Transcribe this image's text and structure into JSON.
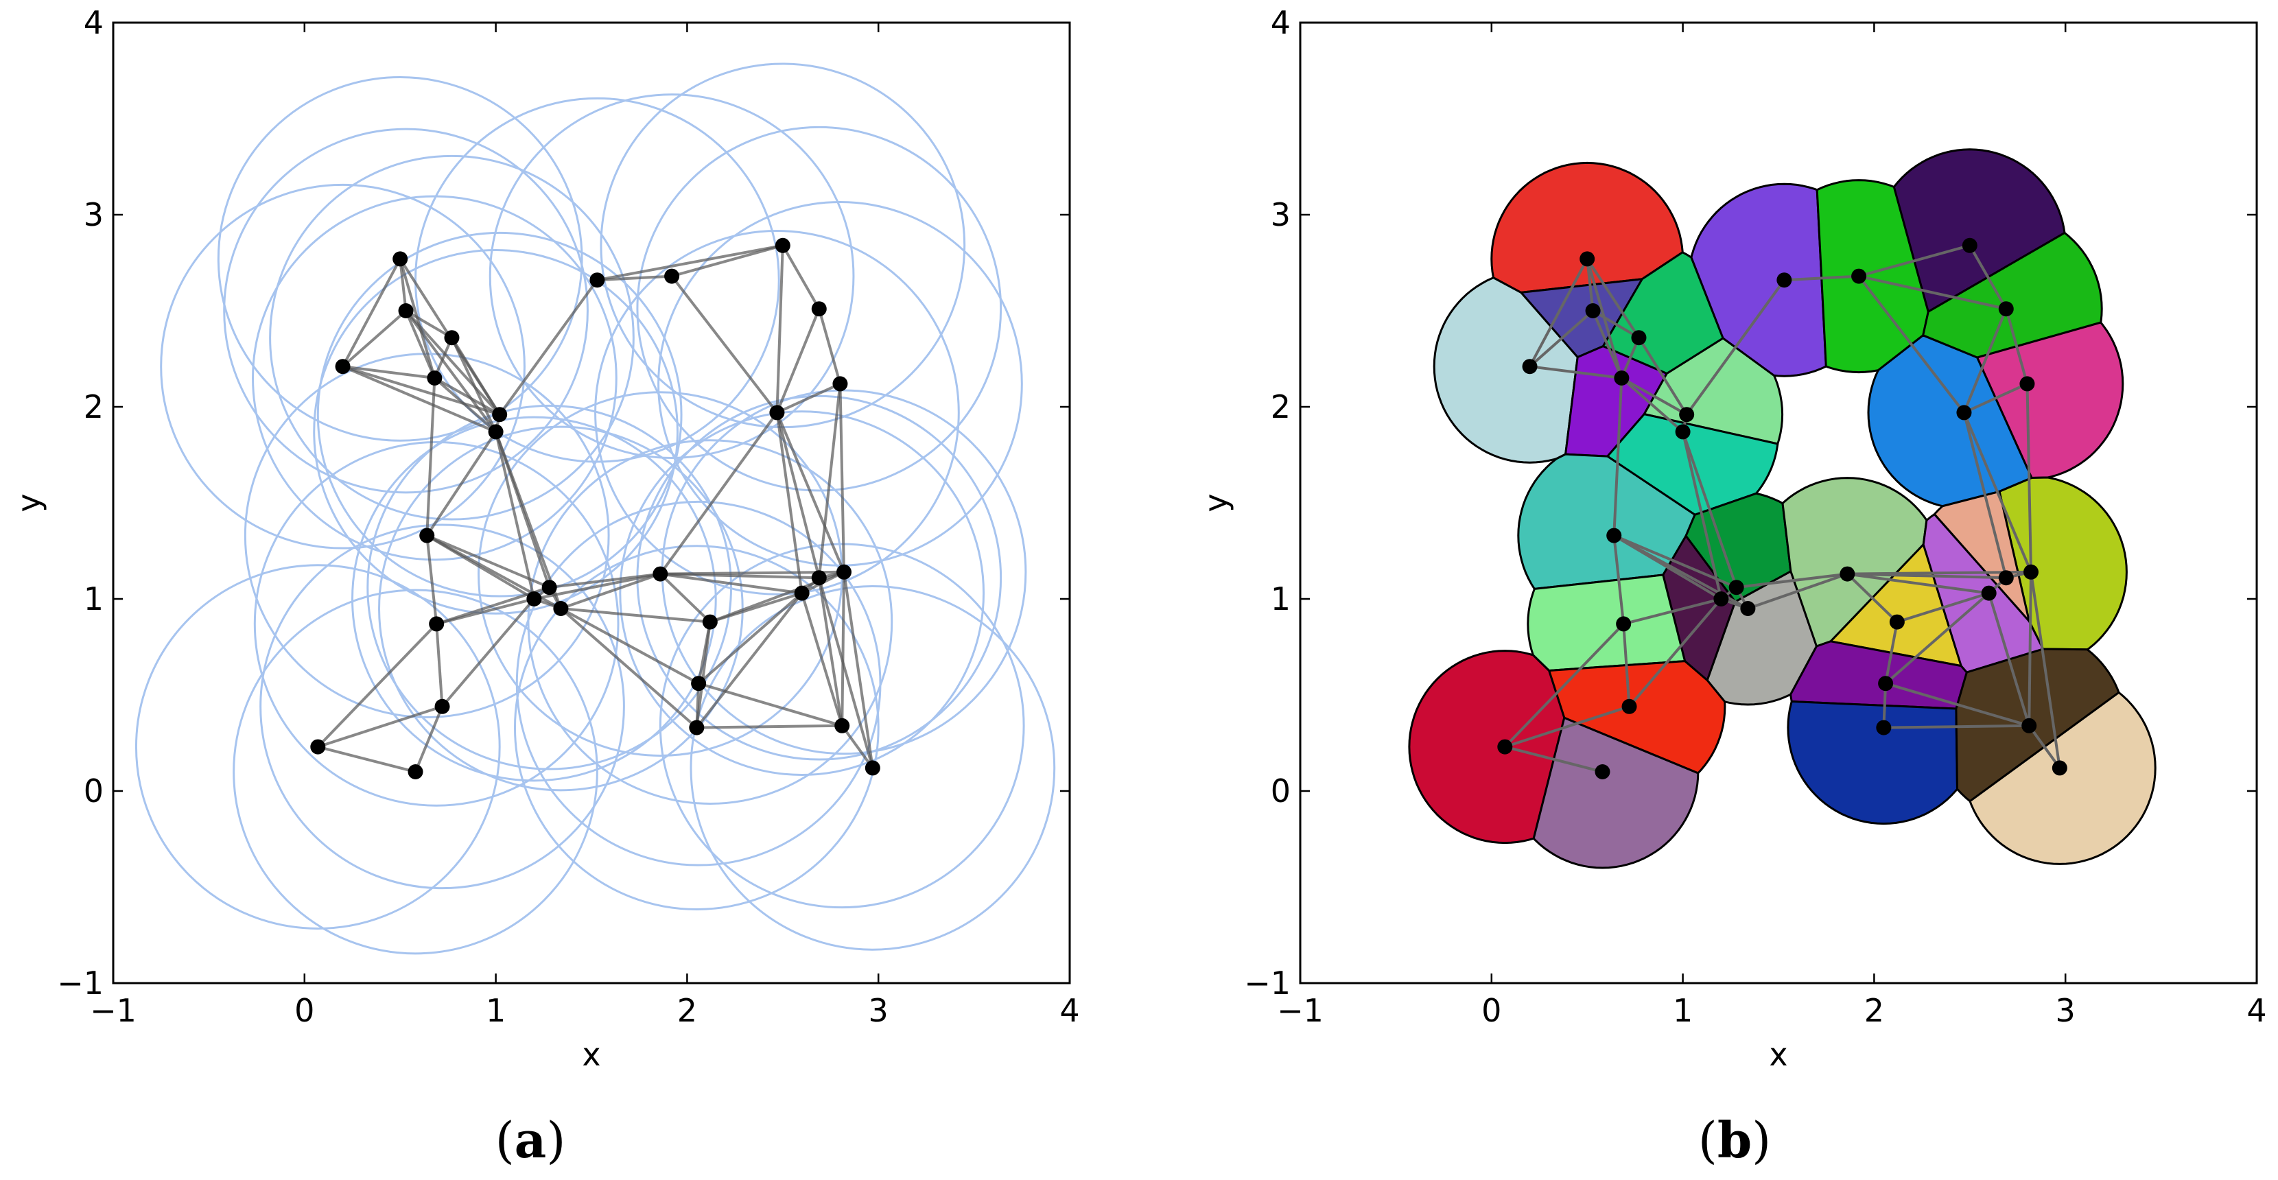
{
  "chart_data": [
    {
      "panel": "a",
      "type": "scatter",
      "caption_letter": "a",
      "title": "",
      "xlabel": "x",
      "ylabel": "y",
      "xlim": [
        -1,
        4
      ],
      "ylim": [
        -1,
        4
      ],
      "xticks": [
        -1,
        0,
        1,
        2,
        3,
        4
      ],
      "yticks": [
        -1,
        0,
        1,
        2,
        3,
        4
      ],
      "xtick_labels": [
        "−1",
        "0",
        "1",
        "2",
        "3",
        "4"
      ],
      "ytick_labels": [
        "−1",
        "0",
        "1",
        "2",
        "3",
        "4"
      ],
      "grid": false,
      "circle_radius": 0.95,
      "circle_color": "#a7c4ef",
      "edge_color": "#555555",
      "point_color": "#000000",
      "points": [
        [
          0.5,
          2.77
        ],
        [
          0.53,
          2.5
        ],
        [
          0.77,
          2.36
        ],
        [
          0.2,
          2.21
        ],
        [
          0.68,
          2.15
        ],
        [
          1.02,
          1.96
        ],
        [
          1.0,
          1.87
        ],
        [
          1.53,
          2.66
        ],
        [
          1.92,
          2.68
        ],
        [
          2.5,
          2.84
        ],
        [
          2.69,
          2.51
        ],
        [
          2.8,
          2.12
        ],
        [
          2.47,
          1.97
        ],
        [
          0.64,
          1.33
        ],
        [
          1.28,
          1.06
        ],
        [
          1.2,
          1.0
        ],
        [
          1.34,
          0.95
        ],
        [
          1.86,
          1.13
        ],
        [
          2.12,
          0.88
        ],
        [
          2.06,
          0.56
        ],
        [
          2.05,
          0.33
        ],
        [
          2.82,
          1.14
        ],
        [
          2.69,
          1.11
        ],
        [
          2.6,
          1.03
        ],
        [
          2.81,
          0.34
        ],
        [
          2.97,
          0.12
        ],
        [
          0.69,
          0.87
        ],
        [
          0.72,
          0.44
        ],
        [
          0.07,
          0.23
        ],
        [
          0.58,
          0.1
        ]
      ],
      "edges": [
        [
          0,
          1
        ],
        [
          0,
          3
        ],
        [
          0,
          4
        ],
        [
          0,
          5
        ],
        [
          1,
          2
        ],
        [
          1,
          3
        ],
        [
          1,
          4
        ],
        [
          1,
          5
        ],
        [
          1,
          6
        ],
        [
          2,
          4
        ],
        [
          2,
          5
        ],
        [
          2,
          6
        ],
        [
          3,
          4
        ],
        [
          3,
          5
        ],
        [
          3,
          6
        ],
        [
          4,
          5
        ],
        [
          4,
          6
        ],
        [
          4,
          13
        ],
        [
          5,
          6
        ],
        [
          6,
          13
        ],
        [
          6,
          14
        ],
        [
          6,
          15
        ],
        [
          6,
          16
        ],
        [
          5,
          7
        ],
        [
          7,
          8
        ],
        [
          7,
          9
        ],
        [
          8,
          9
        ],
        [
          8,
          12
        ],
        [
          9,
          10
        ],
        [
          9,
          12
        ],
        [
          10,
          11
        ],
        [
          10,
          12
        ],
        [
          11,
          12
        ],
        [
          11,
          21
        ],
        [
          12,
          21
        ],
        [
          12,
          22
        ],
        [
          11,
          22
        ],
        [
          12,
          17
        ],
        [
          12,
          23
        ],
        [
          13,
          14
        ],
        [
          13,
          15
        ],
        [
          13,
          16
        ],
        [
          13,
          26
        ],
        [
          14,
          15
        ],
        [
          14,
          16
        ],
        [
          14,
          17
        ],
        [
          15,
          16
        ],
        [
          15,
          17
        ],
        [
          16,
          17
        ],
        [
          16,
          18
        ],
        [
          16,
          19
        ],
        [
          16,
          20
        ],
        [
          15,
          26
        ],
        [
          15,
          27
        ],
        [
          14,
          26
        ],
        [
          17,
          18
        ],
        [
          17,
          21
        ],
        [
          17,
          22
        ],
        [
          17,
          23
        ],
        [
          18,
          19
        ],
        [
          18,
          23
        ],
        [
          18,
          20
        ],
        [
          19,
          20
        ],
        [
          19,
          23
        ],
        [
          19,
          24
        ],
        [
          20,
          24
        ],
        [
          21,
          22
        ],
        [
          21,
          23
        ],
        [
          22,
          23
        ],
        [
          21,
          24
        ],
        [
          21,
          25
        ],
        [
          22,
          24
        ],
        [
          22,
          25
        ],
        [
          23,
          24
        ],
        [
          23,
          20
        ],
        [
          24,
          25
        ],
        [
          26,
          27
        ],
        [
          26,
          28
        ],
        [
          27,
          28
        ],
        [
          27,
          29
        ],
        [
          28,
          29
        ],
        [
          18,
          21
        ]
      ]
    },
    {
      "panel": "b",
      "type": "scatter",
      "caption_letter": "b",
      "title": "",
      "xlabel": "x",
      "ylabel": "y",
      "xlim": [
        -1,
        4
      ],
      "ylim": [
        -1,
        4
      ],
      "xticks": [
        -1,
        0,
        1,
        2,
        3,
        4
      ],
      "yticks": [
        -1,
        0,
        1,
        2,
        3,
        4
      ],
      "xtick_labels": [
        "−1",
        "0",
        "1",
        "2",
        "3",
        "4"
      ],
      "ytick_labels": [
        "−1",
        "0",
        "1",
        "2",
        "3",
        "4"
      ],
      "grid": false,
      "circle_radius": 0.5,
      "edge_color": "#666666",
      "point_color": "#000000",
      "points": [
        [
          0.5,
          2.77
        ],
        [
          0.53,
          2.5
        ],
        [
          0.77,
          2.36
        ],
        [
          0.2,
          2.21
        ],
        [
          0.68,
          2.15
        ],
        [
          1.02,
          1.96
        ],
        [
          1.0,
          1.87
        ],
        [
          1.53,
          2.66
        ],
        [
          1.92,
          2.68
        ],
        [
          2.5,
          2.84
        ],
        [
          2.69,
          2.51
        ],
        [
          2.8,
          2.12
        ],
        [
          2.47,
          1.97
        ],
        [
          0.64,
          1.33
        ],
        [
          1.28,
          1.06
        ],
        [
          1.2,
          1.0
        ],
        [
          1.34,
          0.95
        ],
        [
          1.86,
          1.13
        ],
        [
          2.12,
          0.88
        ],
        [
          2.06,
          0.56
        ],
        [
          2.05,
          0.33
        ],
        [
          2.82,
          1.14
        ],
        [
          2.69,
          1.11
        ],
        [
          2.6,
          1.03
        ],
        [
          2.81,
          0.34
        ],
        [
          2.97,
          0.12
        ],
        [
          0.69,
          0.87
        ],
        [
          0.72,
          0.44
        ],
        [
          0.07,
          0.23
        ],
        [
          0.58,
          0.1
        ]
      ],
      "cell_colors": [
        "#e8302a",
        "#5046a8",
        "#12c064",
        "#b6dade",
        "#8915cf",
        "#84e296",
        "#17ceA2",
        "#7a44dd",
        "#17c317",
        "#3a0f5c",
        "#19b916",
        "#d9368f",
        "#1c84e2",
        "#44c4b5",
        "#069638",
        "#4d1648",
        "#aaaba6",
        "#9ace8f",
        "#e2cc2e",
        "#7a0f9a",
        "#0f31a0",
        "#b0cd1a",
        "#e8a68c",
        "#b461d6",
        "#4d391f",
        "#e8d0ab",
        "#84ed91",
        "#f02b12",
        "#cb0a34",
        "#946a9c"
      ],
      "edges": [
        [
          0,
          1
        ],
        [
          0,
          2
        ],
        [
          0,
          3
        ],
        [
          0,
          4
        ],
        [
          1,
          2
        ],
        [
          1,
          3
        ],
        [
          1,
          4
        ],
        [
          2,
          4
        ],
        [
          2,
          5
        ],
        [
          3,
          4
        ],
        [
          4,
          5
        ],
        [
          4,
          6
        ],
        [
          4,
          13
        ],
        [
          5,
          6
        ],
        [
          5,
          7
        ],
        [
          6,
          15
        ],
        [
          6,
          14
        ],
        [
          7,
          8
        ],
        [
          8,
          9
        ],
        [
          8,
          10
        ],
        [
          8,
          12
        ],
        [
          9,
          10
        ],
        [
          10,
          11
        ],
        [
          10,
          12
        ],
        [
          11,
          12
        ],
        [
          11,
          21
        ],
        [
          12,
          21
        ],
        [
          12,
          22
        ],
        [
          13,
          14
        ],
        [
          13,
          15
        ],
        [
          13,
          16
        ],
        [
          13,
          26
        ],
        [
          14,
          15
        ],
        [
          14,
          16
        ],
        [
          14,
          17
        ],
        [
          15,
          16
        ],
        [
          15,
          26
        ],
        [
          15,
          27
        ],
        [
          16,
          17
        ],
        [
          17,
          18
        ],
        [
          17,
          21
        ],
        [
          17,
          22
        ],
        [
          17,
          23
        ],
        [
          18,
          19
        ],
        [
          18,
          23
        ],
        [
          19,
          20
        ],
        [
          19,
          23
        ],
        [
          19,
          24
        ],
        [
          20,
          24
        ],
        [
          21,
          22
        ],
        [
          21,
          24
        ],
        [
          21,
          25
        ],
        [
          22,
          23
        ],
        [
          23,
          24
        ],
        [
          24,
          25
        ],
        [
          26,
          27
        ],
        [
          26,
          28
        ],
        [
          27,
          28
        ],
        [
          28,
          29
        ]
      ]
    }
  ]
}
